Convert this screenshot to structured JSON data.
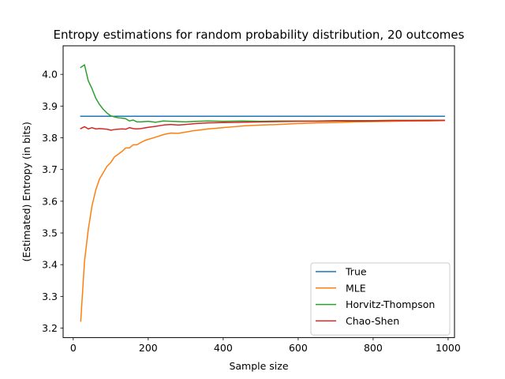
{
  "chart_data": {
    "type": "line",
    "title": "Entropy estimations for random probability distribution, 20 outcomes",
    "xlabel": "Sample size",
    "ylabel": "(Estimated) Entropy (in bits)",
    "xlim": [
      -27,
      1017
    ],
    "ylim": [
      3.17,
      4.09
    ],
    "xticks": [
      0,
      200,
      400,
      600,
      800,
      1000
    ],
    "yticks": [
      3.2,
      3.3,
      3.4,
      3.5,
      3.6,
      3.7,
      3.8,
      3.9,
      4.0
    ],
    "grid": false,
    "legend_position": "lower-right",
    "series": [
      {
        "name": "True",
        "color": "#1f77b4",
        "x": [
          20,
          990
        ],
        "y": [
          3.868,
          3.868
        ]
      },
      {
        "name": "MLE",
        "color": "#ff7f0e",
        "x": [
          20,
          30,
          40,
          50,
          60,
          70,
          80,
          90,
          100,
          110,
          120,
          130,
          140,
          150,
          160,
          170,
          180,
          190,
          200,
          220,
          240,
          260,
          280,
          300,
          320,
          340,
          360,
          380,
          400,
          430,
          460,
          500,
          550,
          600,
          650,
          700,
          750,
          800,
          850,
          900,
          950,
          990
        ],
        "y": [
          3.222,
          3.41,
          3.51,
          3.585,
          3.635,
          3.67,
          3.69,
          3.71,
          3.722,
          3.74,
          3.748,
          3.757,
          3.768,
          3.768,
          3.778,
          3.778,
          3.785,
          3.791,
          3.795,
          3.802,
          3.81,
          3.815,
          3.814,
          3.818,
          3.822,
          3.825,
          3.828,
          3.83,
          3.832,
          3.835,
          3.838,
          3.84,
          3.842,
          3.845,
          3.847,
          3.848,
          3.85,
          3.851,
          3.852,
          3.853,
          3.853,
          3.854
        ]
      },
      {
        "name": "Horvitz-Thompson",
        "color": "#2ca02c",
        "x": [
          20,
          30,
          40,
          50,
          60,
          70,
          80,
          90,
          100,
          110,
          120,
          130,
          140,
          150,
          160,
          170,
          180,
          200,
          220,
          240,
          260,
          280,
          300,
          330,
          360,
          400,
          450,
          500,
          550,
          600,
          650,
          700,
          750,
          800,
          850,
          900,
          950,
          990
        ],
        "y": [
          4.022,
          4.03,
          3.98,
          3.955,
          3.925,
          3.905,
          3.89,
          3.878,
          3.869,
          3.866,
          3.863,
          3.862,
          3.86,
          3.853,
          3.856,
          3.85,
          3.85,
          3.852,
          3.849,
          3.853,
          3.852,
          3.851,
          3.85,
          3.852,
          3.853,
          3.852,
          3.853,
          3.852,
          3.853,
          3.853,
          3.853,
          3.854,
          3.854,
          3.854,
          3.855,
          3.855,
          3.855,
          3.855
        ]
      },
      {
        "name": "Chao-Shen",
        "color": "#d62728",
        "x": [
          20,
          30,
          40,
          50,
          60,
          70,
          80,
          90,
          100,
          110,
          120,
          130,
          140,
          150,
          160,
          170,
          180,
          200,
          220,
          240,
          260,
          280,
          300,
          330,
          360,
          400,
          450,
          500,
          550,
          600,
          650,
          700,
          750,
          800,
          850,
          900,
          950,
          990
        ],
        "y": [
          3.829,
          3.835,
          3.828,
          3.832,
          3.828,
          3.829,
          3.828,
          3.827,
          3.824,
          3.826,
          3.827,
          3.828,
          3.827,
          3.832,
          3.829,
          3.828,
          3.829,
          3.833,
          3.836,
          3.84,
          3.842,
          3.84,
          3.842,
          3.845,
          3.847,
          3.848,
          3.849,
          3.85,
          3.851,
          3.852,
          3.852,
          3.853,
          3.853,
          3.853,
          3.854,
          3.854,
          3.855,
          3.855
        ]
      }
    ]
  }
}
